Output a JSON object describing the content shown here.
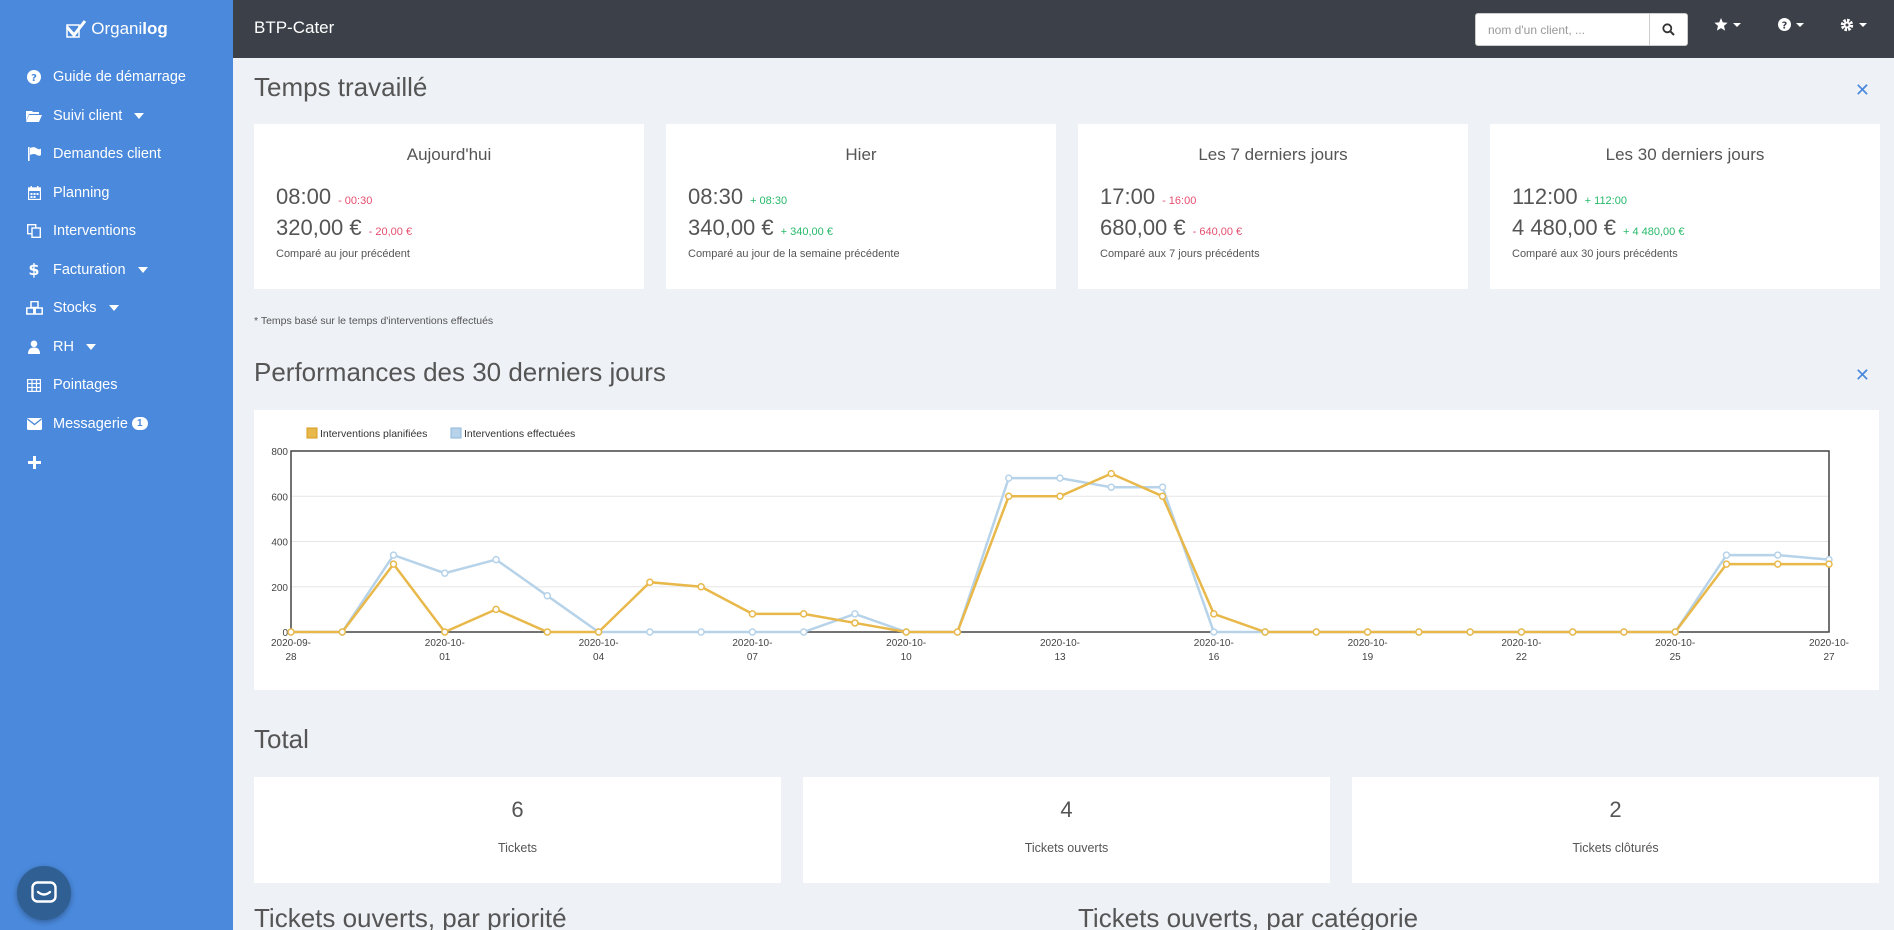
{
  "brand": {
    "name_a": "Organi",
    "name_b": "log"
  },
  "sidebar": {
    "items": [
      {
        "label": "Guide de démarrage",
        "icon": "question-circle-icon",
        "caret": false
      },
      {
        "label": "Suivi client",
        "icon": "folder-open-icon",
        "caret": true
      },
      {
        "label": "Demandes client",
        "icon": "flag-icon",
        "caret": false
      },
      {
        "label": "Planning",
        "icon": "calendar-icon",
        "caret": false
      },
      {
        "label": "Interventions",
        "icon": "copy-icon",
        "caret": false
      },
      {
        "label": "Facturation",
        "icon": "dollar-icon",
        "caret": true
      },
      {
        "label": "Stocks",
        "icon": "cubes-icon",
        "caret": true
      },
      {
        "label": "RH",
        "icon": "user-icon",
        "caret": true
      },
      {
        "label": "Pointages",
        "icon": "table-icon",
        "caret": false
      },
      {
        "label": "Messagerie",
        "icon": "envelope-icon",
        "caret": false,
        "badge": "1"
      }
    ]
  },
  "topbar": {
    "title": "BTP-Cater",
    "search_placeholder": "nom d'un client, ..."
  },
  "temps": {
    "title": "Temps travaillé",
    "cards": [
      {
        "title": "Aujourd'hui",
        "time": "08:00",
        "time_delta": "- 00:30",
        "time_sign": "neg",
        "amount": "320,00 €",
        "amount_delta": "- 20,00 €",
        "amount_sign": "neg",
        "compare": "Comparé au jour précédent"
      },
      {
        "title": "Hier",
        "time": "08:30",
        "time_delta": "+ 08:30",
        "time_sign": "pos",
        "amount": "340,00 €",
        "amount_delta": "+ 340,00 €",
        "amount_sign": "pos",
        "compare": "Comparé au jour de la semaine précédente"
      },
      {
        "title": "Les 7 derniers jours",
        "time": "17:00",
        "time_delta": "- 16:00",
        "time_sign": "neg",
        "amount": "680,00 €",
        "amount_delta": "- 640,00 €",
        "amount_sign": "neg",
        "compare": "Comparé aux 7 jours précédents"
      },
      {
        "title": "Les 30 derniers jours",
        "time": "112:00",
        "time_delta": "+ 112:00",
        "time_sign": "pos",
        "amount": "4 480,00 €",
        "amount_delta": "+ 4 480,00 €",
        "amount_sign": "pos",
        "compare": "Comparé aux 30 jours précédents"
      }
    ],
    "footnote": "* Temps basé sur le temps d'interventions effectués"
  },
  "performances": {
    "title": "Performances des 30 derniers jours"
  },
  "chart_data": {
    "type": "line",
    "title": "",
    "xlabel": "",
    "ylabel": "",
    "ylim": [
      0,
      800
    ],
    "yticks": [
      0,
      200,
      400,
      600,
      800
    ],
    "grid": true,
    "legend": "top-left",
    "x": [
      "2020-09-28",
      "2020-09-29",
      "2020-09-30",
      "2020-10-01",
      "2020-10-02",
      "2020-10-03",
      "2020-10-04",
      "2020-10-05",
      "2020-10-06",
      "2020-10-07",
      "2020-10-08",
      "2020-10-09",
      "2020-10-10",
      "2020-10-11",
      "2020-10-12",
      "2020-10-13",
      "2020-10-14",
      "2020-10-15",
      "2020-10-16",
      "2020-10-17",
      "2020-10-18",
      "2020-10-19",
      "2020-10-20",
      "2020-10-21",
      "2020-10-22",
      "2020-10-23",
      "2020-10-24",
      "2020-10-25",
      "2020-10-26",
      "2020-10-27",
      "2020-10-28"
    ],
    "xtick_labels": [
      {
        "line1": "2020-09-",
        "line2": "28"
      },
      {
        "line1": "2020-10-",
        "line2": "01"
      },
      {
        "line1": "2020-10-",
        "line2": "04"
      },
      {
        "line1": "2020-10-",
        "line2": "07"
      },
      {
        "line1": "2020-10-",
        "line2": "10"
      },
      {
        "line1": "2020-10-",
        "line2": "13"
      },
      {
        "line1": "2020-10-",
        "line2": "16"
      },
      {
        "line1": "2020-10-",
        "line2": "19"
      },
      {
        "line1": "2020-10-",
        "line2": "22"
      },
      {
        "line1": "2020-10-",
        "line2": "25"
      },
      {
        "line1": "2020-10-",
        "line2": "27"
      }
    ],
    "series": [
      {
        "name": "Interventions planifiées",
        "color": "#e8b84a",
        "values": [
          0,
          0,
          300,
          0,
          100,
          0,
          0,
          220,
          200,
          80,
          80,
          40,
          0,
          0,
          600,
          600,
          700,
          600,
          80,
          0,
          0,
          0,
          0,
          0,
          0,
          0,
          0,
          0,
          300,
          300,
          300
        ]
      },
      {
        "name": "Interventions effectuées",
        "color": "#b7d3e9",
        "values": [
          0,
          0,
          340,
          260,
          320,
          160,
          0,
          0,
          0,
          0,
          0,
          80,
          0,
          0,
          680,
          680,
          640,
          640,
          0,
          0,
          0,
          0,
          0,
          0,
          0,
          0,
          0,
          0,
          340,
          340,
          320
        ]
      }
    ]
  },
  "total": {
    "title": "Total",
    "cards": [
      {
        "value": "6",
        "label": "Tickets"
      },
      {
        "value": "4",
        "label": "Tickets ouverts"
      },
      {
        "value": "2",
        "label": "Tickets clôturés"
      }
    ]
  },
  "bottom": {
    "left_title": "Tickets ouverts, par priorité",
    "right_title": "Tickets ouverts, par catégorie"
  }
}
